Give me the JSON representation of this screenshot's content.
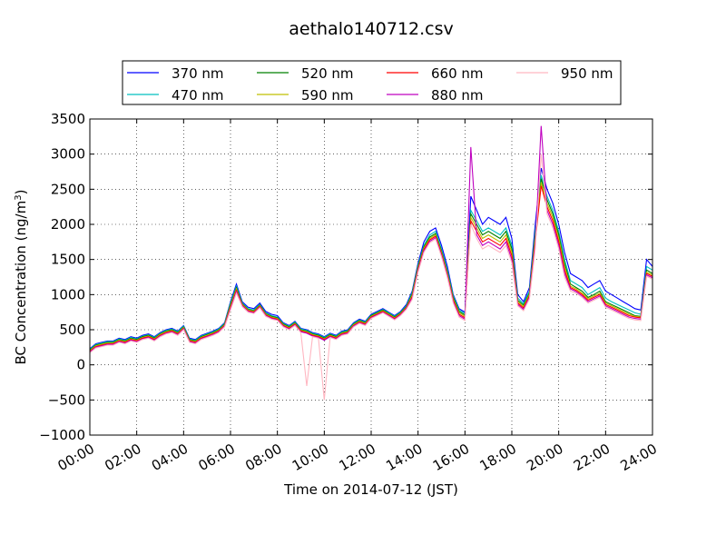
{
  "chart_data": {
    "type": "line",
    "title": "aethalo140712.csv",
    "xlabel": "Time on 2014-07-12 (JST)",
    "ylabel": "BC Concentration (ng/m",
    "ylabel_sup": "3",
    "ylabel_close": ")",
    "xlim": [
      0,
      24
    ],
    "ylim": [
      -1000,
      3500
    ],
    "x_ticks": [
      0,
      2,
      4,
      6,
      8,
      10,
      12,
      14,
      16,
      18,
      20,
      22,
      24
    ],
    "x_tick_labels": [
      "00:00",
      "02:00",
      "04:00",
      "06:00",
      "08:00",
      "10:00",
      "12:00",
      "14:00",
      "16:00",
      "18:00",
      "20:00",
      "22:00",
      "24:00"
    ],
    "y_ticks": [
      -1000,
      -500,
      0,
      500,
      1000,
      1500,
      2000,
      2500,
      3000,
      3500
    ],
    "y_tick_labels": [
      "−1000",
      "−500",
      "0",
      "500",
      "1000",
      "1500",
      "2000",
      "2500",
      "3000",
      "3500"
    ],
    "grid": true,
    "legend_position": "top, above plot",
    "x": [
      0.0,
      0.25,
      0.5,
      0.75,
      1.0,
      1.25,
      1.5,
      1.75,
      2.0,
      2.25,
      2.5,
      2.75,
      3.0,
      3.25,
      3.5,
      3.75,
      4.0,
      4.25,
      4.5,
      4.75,
      5.0,
      5.25,
      5.5,
      5.75,
      6.0,
      6.25,
      6.5,
      6.75,
      7.0,
      7.25,
      7.5,
      7.75,
      8.0,
      8.25,
      8.5,
      8.75,
      9.0,
      9.25,
      9.5,
      9.75,
      10.0,
      10.25,
      10.5,
      10.75,
      11.0,
      11.25,
      11.5,
      11.75,
      12.0,
      12.25,
      12.5,
      12.75,
      13.0,
      13.25,
      13.5,
      13.75,
      14.0,
      14.25,
      14.5,
      14.75,
      15.0,
      15.25,
      15.5,
      15.75,
      16.0,
      16.25,
      16.5,
      16.75,
      17.0,
      17.25,
      17.5,
      17.75,
      18.0,
      18.25,
      18.5,
      18.75,
      19.0,
      19.25,
      19.5,
      19.75,
      20.0,
      20.25,
      20.5,
      20.75,
      21.0,
      21.25,
      21.5,
      21.75,
      22.0,
      22.25,
      22.5,
      22.75,
      23.0,
      23.25,
      23.5,
      23.75,
      24.0
    ],
    "series": [
      {
        "name": "370 nm",
        "color": "#0000ff",
        "values": [
          230,
          300,
          320,
          340,
          340,
          380,
          360,
          400,
          380,
          420,
          440,
          400,
          460,
          500,
          520,
          480,
          560,
          380,
          360,
          420,
          450,
          480,
          520,
          600,
          900,
          1150,
          900,
          820,
          800,
          880,
          760,
          720,
          700,
          600,
          560,
          620,
          520,
          500,
          460,
          440,
          400,
          450,
          420,
          480,
          500,
          600,
          650,
          620,
          720,
          760,
          800,
          750,
          700,
          760,
          860,
          1050,
          1450,
          1750,
          1900,
          1950,
          1700,
          1400,
          1000,
          800,
          750,
          2400,
          2200,
          2000,
          2100,
          2050,
          2000,
          2100,
          1800,
          1000,
          900,
          1100,
          2000,
          2800,
          2500,
          2300,
          2000,
          1600,
          1300,
          1250,
          1200,
          1100,
          1150,
          1200,
          1050,
          1000,
          950,
          900,
          850,
          800,
          780,
          1500,
          1400
        ]
      },
      {
        "name": "470 nm",
        "color": "#00bfbf",
        "values": [
          220,
          290,
          310,
          330,
          330,
          370,
          350,
          390,
          370,
          410,
          430,
          390,
          450,
          490,
          510,
          470,
          550,
          370,
          350,
          410,
          440,
          470,
          510,
          590,
          880,
          1120,
          880,
          800,
          780,
          860,
          740,
          700,
          680,
          590,
          550,
          610,
          510,
          490,
          450,
          430,
          390,
          440,
          410,
          470,
          490,
          590,
          640,
          610,
          710,
          750,
          790,
          740,
          690,
          750,
          840,
          1030,
          1420,
          1700,
          1850,
          1900,
          1650,
          1350,
          980,
          780,
          730,
          2200,
          2050,
          1900,
          1950,
          1900,
          1850,
          1950,
          1700,
          950,
          870,
          1050,
          1900,
          2700,
          2400,
          2200,
          1900,
          1500,
          1200,
          1150,
          1100,
          1000,
          1050,
          1100,
          950,
          900,
          860,
          820,
          780,
          740,
          720,
          1400,
          1350
        ]
      },
      {
        "name": "520 nm",
        "color": "#008000",
        "values": [
          210,
          280,
          300,
          320,
          320,
          360,
          340,
          380,
          360,
          400,
          420,
          380,
          440,
          480,
          500,
          460,
          540,
          360,
          340,
          400,
          430,
          460,
          500,
          580,
          860,
          1100,
          870,
          790,
          770,
          850,
          730,
          690,
          670,
          580,
          540,
          600,
          500,
          480,
          440,
          420,
          380,
          430,
          400,
          460,
          480,
          580,
          630,
          600,
          700,
          740,
          780,
          730,
          680,
          740,
          830,
          1010,
          1400,
          1680,
          1820,
          1870,
          1620,
          1320,
          960,
          760,
          710,
          2150,
          2000,
          1850,
          1900,
          1850,
          1800,
          1900,
          1650,
          920,
          850,
          1020,
          1850,
          2650,
          2350,
          2150,
          1850,
          1450,
          1150,
          1100,
          1050,
          960,
          1000,
          1050,
          900,
          860,
          820,
          780,
          740,
          700,
          690,
          1350,
          1300
        ]
      },
      {
        "name": "590 nm",
        "color": "#bfbf00",
        "values": [
          200,
          270,
          290,
          310,
          310,
          350,
          330,
          370,
          350,
          390,
          410,
          370,
          430,
          470,
          490,
          450,
          530,
          350,
          330,
          390,
          420,
          450,
          490,
          570,
          840,
          1080,
          860,
          780,
          760,
          840,
          720,
          680,
          660,
          570,
          530,
          590,
          490,
          470,
          430,
          410,
          370,
          420,
          390,
          450,
          470,
          570,
          620,
          590,
          690,
          730,
          770,
          720,
          670,
          730,
          820,
          990,
          1380,
          1660,
          1800,
          1850,
          1600,
          1300,
          940,
          740,
          690,
          2100,
          1950,
          1800,
          1850,
          1800,
          1750,
          1850,
          1600,
          900,
          830,
          1000,
          1800,
          2600,
          2300,
          2100,
          1800,
          1400,
          1120,
          1080,
          1020,
          940,
          980,
          1020,
          880,
          840,
          800,
          760,
          720,
          690,
          680,
          1320,
          1280
        ]
      },
      {
        "name": "660 nm",
        "color": "#ff0000",
        "values": [
          190,
          260,
          280,
          300,
          300,
          340,
          320,
          360,
          340,
          380,
          400,
          360,
          420,
          460,
          480,
          440,
          520,
          340,
          320,
          380,
          410,
          440,
          480,
          560,
          820,
          1060,
          850,
          770,
          750,
          830,
          710,
          670,
          650,
          560,
          520,
          580,
          480,
          460,
          420,
          400,
          360,
          410,
          380,
          440,
          460,
          560,
          610,
          580,
          680,
          720,
          760,
          710,
          660,
          720,
          810,
          970,
          1360,
          1640,
          1780,
          1830,
          1580,
          1280,
          920,
          720,
          670,
          2050,
          1900,
          1750,
          1800,
          1750,
          1700,
          1800,
          1550,
          880,
          810,
          980,
          1750,
          2550,
          2250,
          2050,
          1750,
          1350,
          1100,
          1060,
          1000,
          920,
          960,
          1000,
          860,
          820,
          780,
          740,
          700,
          680,
          670,
          1300,
          1260
        ]
      },
      {
        "name": "880 nm",
        "color": "#bf00bf",
        "values": [
          180,
          250,
          270,
          290,
          290,
          330,
          310,
          350,
          330,
          370,
          390,
          350,
          410,
          450,
          470,
          430,
          510,
          330,
          310,
          370,
          400,
          430,
          470,
          550,
          800,
          1040,
          840,
          760,
          740,
          820,
          700,
          660,
          640,
          550,
          510,
          570,
          470,
          450,
          410,
          390,
          350,
          400,
          370,
          430,
          450,
          550,
          600,
          570,
          670,
          710,
          750,
          700,
          650,
          710,
          800,
          950,
          1340,
          1620,
          1760,
          1810,
          1560,
          1260,
          900,
          700,
          650,
          3100,
          1850,
          1700,
          1750,
          1700,
          1650,
          1750,
          1500,
          860,
          790,
          960,
          1700,
          3400,
          2200,
          2000,
          1700,
          1300,
          1080,
          1040,
          980,
          900,
          940,
          980,
          840,
          800,
          760,
          720,
          680,
          660,
          650,
          1280,
          1240
        ]
      },
      {
        "name": "950 nm",
        "color": "#ffb6c1",
        "values": [
          170,
          240,
          260,
          280,
          280,
          320,
          300,
          340,
          320,
          360,
          380,
          340,
          400,
          440,
          460,
          420,
          500,
          320,
          300,
          360,
          390,
          420,
          460,
          540,
          780,
          1020,
          830,
          750,
          730,
          810,
          690,
          650,
          630,
          540,
          500,
          560,
          460,
          -300,
          400,
          380,
          -500,
          390,
          360,
          420,
          440,
          540,
          590,
          560,
          660,
          700,
          740,
          690,
          640,
          700,
          790,
          930,
          1320,
          1600,
          1740,
          1790,
          1540,
          1240,
          880,
          680,
          630,
          2000,
          1800,
          1650,
          1700,
          1650,
          1600,
          1700,
          1450,
          840,
          770,
          940,
          1650,
          3000,
          2150,
          1950,
          1650,
          1250,
          1050,
          1020,
          960,
          880,
          920,
          960,
          820,
          780,
          740,
          700,
          660,
          640,
          630,
          1260,
          1220
        ]
      }
    ]
  }
}
